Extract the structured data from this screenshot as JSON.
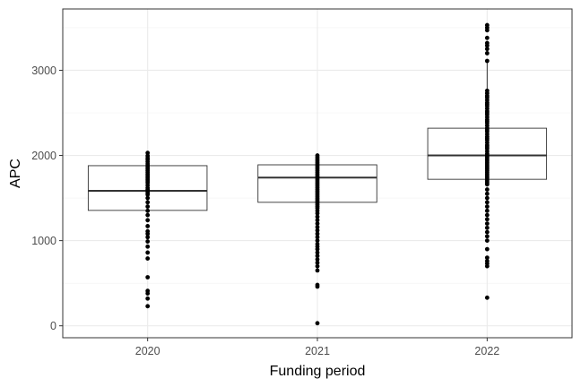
{
  "chart_data": {
    "type": "box",
    "xlabel": "Funding period",
    "ylabel": "APC",
    "categories": [
      "2020",
      "2021",
      "2022"
    ],
    "ylim": [
      -140,
      3720
    ],
    "yticks": [
      0,
      1000,
      2000,
      3000
    ],
    "grid": true,
    "boxes": [
      {
        "category": "2020",
        "q1": 1355,
        "median": 1585,
        "q3": 1880
      },
      {
        "category": "2021",
        "q1": 1450,
        "median": 1740,
        "q3": 1890
      },
      {
        "category": "2022",
        "q1": 1720,
        "median": 2000,
        "q3": 2320,
        "whisker_high": 3100
      }
    ],
    "points": [
      {
        "category": "2020",
        "values": [
          2030,
          1995,
          1970,
          1950,
          1925,
          1900,
          1880,
          1860,
          1840,
          1820,
          1800,
          1780,
          1760,
          1740,
          1720,
          1700,
          1680,
          1650,
          1620,
          1600,
          1580,
          1560,
          1540,
          1500,
          1450,
          1400,
          1350,
          1300,
          1240,
          1170,
          1110,
          1080,
          1040,
          990,
          930,
          860,
          790,
          570,
          410,
          380,
          320,
          230
        ]
      },
      {
        "category": "2021",
        "values": [
          2000,
          1980,
          1960,
          1940,
          1920,
          1900,
          1880,
          1860,
          1840,
          1820,
          1800,
          1780,
          1760,
          1740,
          1720,
          1700,
          1680,
          1660,
          1640,
          1620,
          1600,
          1580,
          1560,
          1540,
          1520,
          1500,
          1480,
          1460,
          1440,
          1420,
          1400,
          1380,
          1350,
          1320,
          1280,
          1240,
          1200,
          1160,
          1120,
          1080,
          1040,
          1000,
          960,
          930,
          900,
          860,
          820,
          780,
          740,
          700,
          650,
          480,
          460,
          30
        ]
      },
      {
        "category": "2022",
        "values": [
          3530,
          3500,
          3470,
          3380,
          3320,
          3290,
          3250,
          3200,
          3110,
          2760,
          2730,
          2700,
          2680,
          2650,
          2620,
          2600,
          2580,
          2550,
          2520,
          2500,
          2480,
          2450,
          2420,
          2400,
          2380,
          2350,
          2320,
          2300,
          2280,
          2250,
          2220,
          2200,
          2180,
          2150,
          2120,
          2100,
          2080,
          2050,
          2020,
          2000,
          1980,
          1960,
          1940,
          1920,
          1900,
          1880,
          1860,
          1840,
          1820,
          1800,
          1780,
          1760,
          1740,
          1720,
          1700,
          1680,
          1660,
          1600,
          1550,
          1500,
          1450,
          1400,
          1350,
          1300,
          1250,
          1200,
          1150,
          1100,
          1050,
          1000,
          900,
          800,
          760,
          730,
          700,
          330
        ]
      }
    ]
  }
}
